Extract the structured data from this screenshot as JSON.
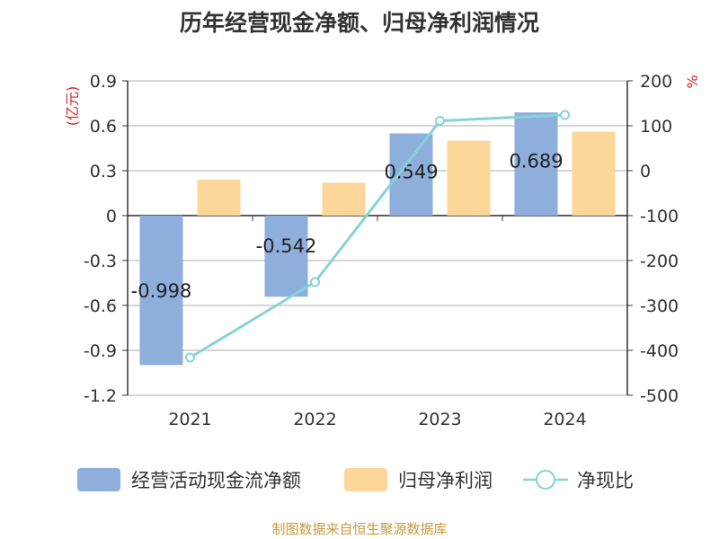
{
  "chart_data": {
    "type": "bar",
    "title": "历年经营现金净额、归母净利润情况",
    "categories": [
      "2021",
      "2022",
      "2023",
      "2024"
    ],
    "left_axis": {
      "label": "(亿元)",
      "ylim": [
        -1.2,
        0.9
      ],
      "ticks": [
        "0.9",
        "0.6",
        "0.3",
        "0",
        "-0.3",
        "-0.6",
        "-0.9",
        "-1.2"
      ]
    },
    "right_axis": {
      "label": "%",
      "ylim": [
        -500,
        200
      ],
      "ticks": [
        "200",
        "100",
        "0",
        "-100",
        "-200",
        "-300",
        "-400",
        "-500"
      ]
    },
    "series": [
      {
        "name": "经营活动现金流净额",
        "kind": "bar",
        "axis": "left",
        "color": "#8eaedc",
        "values": [
          -0.998,
          -0.542,
          0.549,
          0.689
        ],
        "labels": [
          "-0.998",
          "-0.542",
          "0.549",
          "0.689"
        ]
      },
      {
        "name": "归母净利润",
        "kind": "bar",
        "axis": "left",
        "color": "#fdd699",
        "values": [
          0.24,
          0.22,
          0.5,
          0.56
        ]
      },
      {
        "name": "净现比",
        "kind": "line",
        "axis": "right",
        "color": "#86d3d8",
        "values": [
          -416,
          -248,
          111,
          124
        ]
      }
    ],
    "grid": true,
    "legend_position": "bottom"
  },
  "source": "制图数据来自恒生聚源数据库"
}
